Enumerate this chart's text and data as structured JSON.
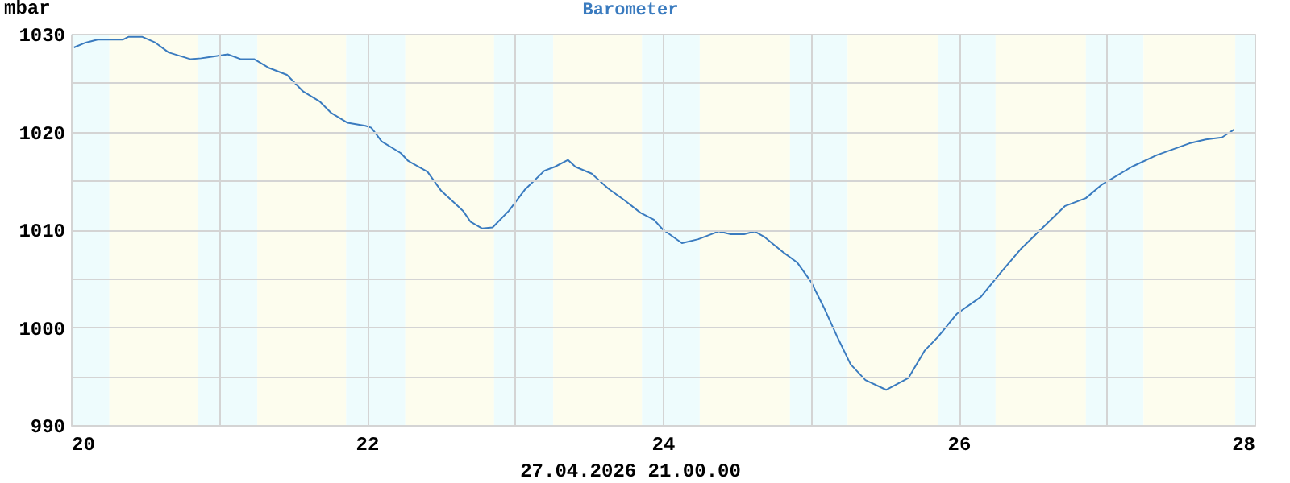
{
  "chart_data": {
    "type": "line",
    "title": "Barometer",
    "ylabel": "mbar",
    "annotations": [
      "27.04.2026 21.00.00"
    ],
    "xlim": [
      20,
      28
    ],
    "ylim": [
      990,
      1030
    ],
    "xticks": [
      20,
      {
        "value": 21,
        "label": null
      },
      22,
      {
        "value": 23,
        "label": null
      },
      24,
      {
        "value": 25,
        "label": null
      },
      26,
      {
        "value": 27,
        "label": null
      },
      28
    ],
    "yticks": [
      990,
      {
        "value": 995,
        "label": null
      },
      1000,
      {
        "value": 1005,
        "label": null
      },
      1010,
      {
        "value": 1015,
        "label": null
      },
      1020,
      {
        "value": 1025,
        "label": null
      },
      1030
    ],
    "grid": true,
    "marker": "none",
    "line_style": "solid",
    "bands": [
      {
        "axis": "x",
        "from": 20,
        "to": 20.26,
        "color": "#eefcfd"
      },
      {
        "axis": "x",
        "from": 20.26,
        "to": 20.86,
        "color": "#fdfdee"
      },
      {
        "axis": "x",
        "from": 20.86,
        "to": 21.26,
        "color": "#eefcfd"
      },
      {
        "axis": "x",
        "from": 21.26,
        "to": 21.86,
        "color": "#fdfdee"
      },
      {
        "axis": "x",
        "from": 21.86,
        "to": 22.26,
        "color": "#eefcfd"
      },
      {
        "axis": "x",
        "from": 22.26,
        "to": 22.86,
        "color": "#fdfdee"
      },
      {
        "axis": "x",
        "from": 22.86,
        "to": 23.26,
        "color": "#eefcfd"
      },
      {
        "axis": "x",
        "from": 23.26,
        "to": 23.86,
        "color": "#fdfdee"
      },
      {
        "axis": "x",
        "from": 23.86,
        "to": 24.25,
        "color": "#eefcfd"
      },
      {
        "axis": "x",
        "from": 24.25,
        "to": 24.86,
        "color": "#fdfdee"
      },
      {
        "axis": "x",
        "from": 24.86,
        "to": 25.25,
        "color": "#eefcfd"
      },
      {
        "axis": "x",
        "from": 25.25,
        "to": 25.86,
        "color": "#fdfdee"
      },
      {
        "axis": "x",
        "from": 25.86,
        "to": 26.25,
        "color": "#eefcfd"
      },
      {
        "axis": "x",
        "from": 26.25,
        "to": 26.86,
        "color": "#fdfdee"
      },
      {
        "axis": "x",
        "from": 26.86,
        "to": 27.25,
        "color": "#eefcfd"
      },
      {
        "axis": "x",
        "from": 27.25,
        "to": 27.87,
        "color": "#fdfdee"
      },
      {
        "axis": "x",
        "from": 27.87,
        "to": 28,
        "color": "#eefcfd"
      }
    ],
    "series": [
      {
        "color": "#3a7bbf",
        "x": [
          20.02,
          20.1,
          20.18,
          20.35,
          20.39,
          20.48,
          20.57,
          20.66,
          20.81,
          20.88,
          20.97,
          21.06,
          21.15,
          21.24,
          21.34,
          21.46,
          21.57,
          21.68,
          21.76,
          21.87,
          21.99,
          22.03,
          22.1,
          22.23,
          22.28,
          22.41,
          22.5,
          22.65,
          22.7,
          22.78,
          22.85,
          22.96,
          23.07,
          23.2,
          23.27,
          23.36,
          23.41,
          23.52,
          23.63,
          23.74,
          23.85,
          23.94,
          24.0,
          24.13,
          24.24,
          24.38,
          24.46,
          24.55,
          24.62,
          24.69,
          24.82,
          24.91,
          25.0,
          25.09,
          25.18,
          25.27,
          25.37,
          25.51,
          25.66,
          25.77,
          25.86,
          25.99,
          26.15,
          26.28,
          26.42,
          26.57,
          26.72,
          26.86,
          26.97,
          27.17,
          27.34,
          27.56,
          27.67,
          27.78,
          27.86
        ],
        "values": [
          1028.6,
          1029.1,
          1029.4,
          1029.4,
          1029.7,
          1029.7,
          1029.1,
          1028.1,
          1027.4,
          1027.5,
          1027.7,
          1027.9,
          1027.4,
          1027.4,
          1026.5,
          1025.8,
          1024.1,
          1023.1,
          1021.9,
          1020.9,
          1020.6,
          1020.4,
          1019.0,
          1017.8,
          1017.0,
          1015.9,
          1014.0,
          1011.9,
          1010.8,
          1010.1,
          1010.2,
          1011.9,
          1014.1,
          1016.0,
          1016.4,
          1017.1,
          1016.4,
          1015.7,
          1014.2,
          1013.0,
          1011.7,
          1011.0,
          1010.0,
          1008.6,
          1009.0,
          1009.8,
          1009.5,
          1009.5,
          1009.8,
          1009.2,
          1007.6,
          1006.6,
          1004.7,
          1002.0,
          999.0,
          996.2,
          994.6,
          993.6,
          994.8,
          997.6,
          999.0,
          1001.4,
          1003.1,
          1005.5,
          1008.0,
          1010.2,
          1012.4,
          1013.2,
          1014.6,
          1016.4,
          1017.6,
          1018.8,
          1019.2,
          1019.4,
          1020.2
        ]
      }
    ]
  }
}
